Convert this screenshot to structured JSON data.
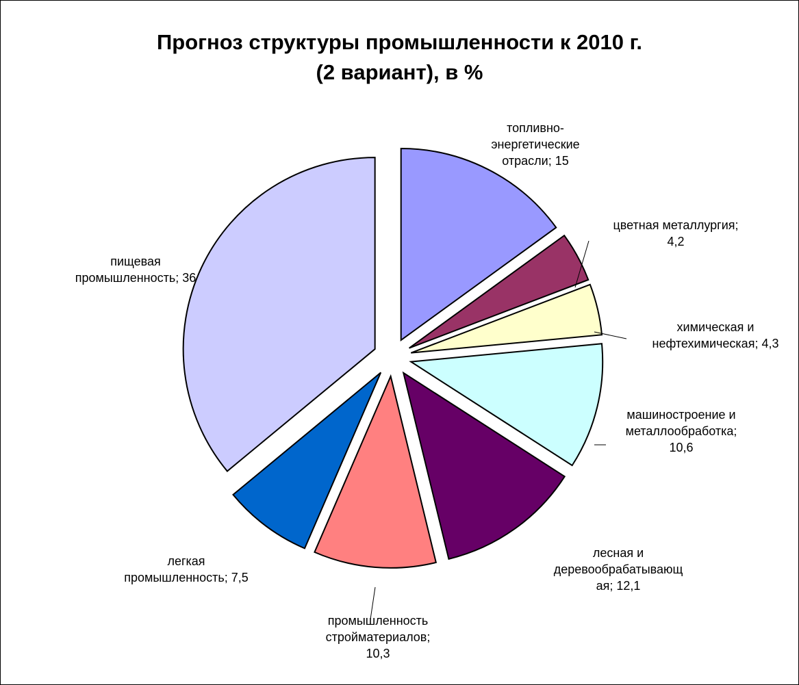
{
  "chart_data": {
    "type": "pie",
    "title_lines": [
      "Прогноз структуры промышленности к 2010 г.",
      "(2 вариант), в %"
    ],
    "slices": [
      {
        "category": "топливно-энергетические отрасли",
        "value": 15,
        "label_lines": [
          "топливно-",
          "энергетические",
          "отрасли; 15"
        ],
        "color": "#9999FF"
      },
      {
        "category": "цветная металлургия",
        "value": 4.2,
        "label_lines": [
          "цветная металлургия;",
          "4,2"
        ],
        "color": "#993366"
      },
      {
        "category": "химическая и нефтехимическая",
        "value": 4.3,
        "label_lines": [
          "химическая и",
          "нефтехимическая; 4,3"
        ],
        "color": "#FFFFCC"
      },
      {
        "category": "машиностроение и металлообработка",
        "value": 10.6,
        "label_lines": [
          "машиностроение и",
          "металлообработка;",
          "10,6"
        ],
        "color": "#CCFFFF"
      },
      {
        "category": "лесная и деревообрабатывающая",
        "value": 12.1,
        "label_lines": [
          "лесная и",
          "деревообрабатывающ",
          "ая; 12,1"
        ],
        "color": "#660066"
      },
      {
        "category": "промышленность стройматериалов",
        "value": 10.3,
        "label_lines": [
          "промышленность",
          "стройматериалов;",
          "10,3"
        ],
        "color": "#FF8080"
      },
      {
        "category": "легкая промышленность",
        "value": 7.5,
        "label_lines": [
          "легкая",
          "промышленность; 7,5"
        ],
        "color": "#0066CC"
      },
      {
        "category": "пищевая промышленность",
        "value": 36,
        "label_lines": [
          "пищевая",
          "промышленность; 36"
        ],
        "color": "#CCCCFF"
      }
    ],
    "start_angle_deg": 0,
    "direction": "clockwise",
    "exploded": true,
    "legend": "none"
  }
}
